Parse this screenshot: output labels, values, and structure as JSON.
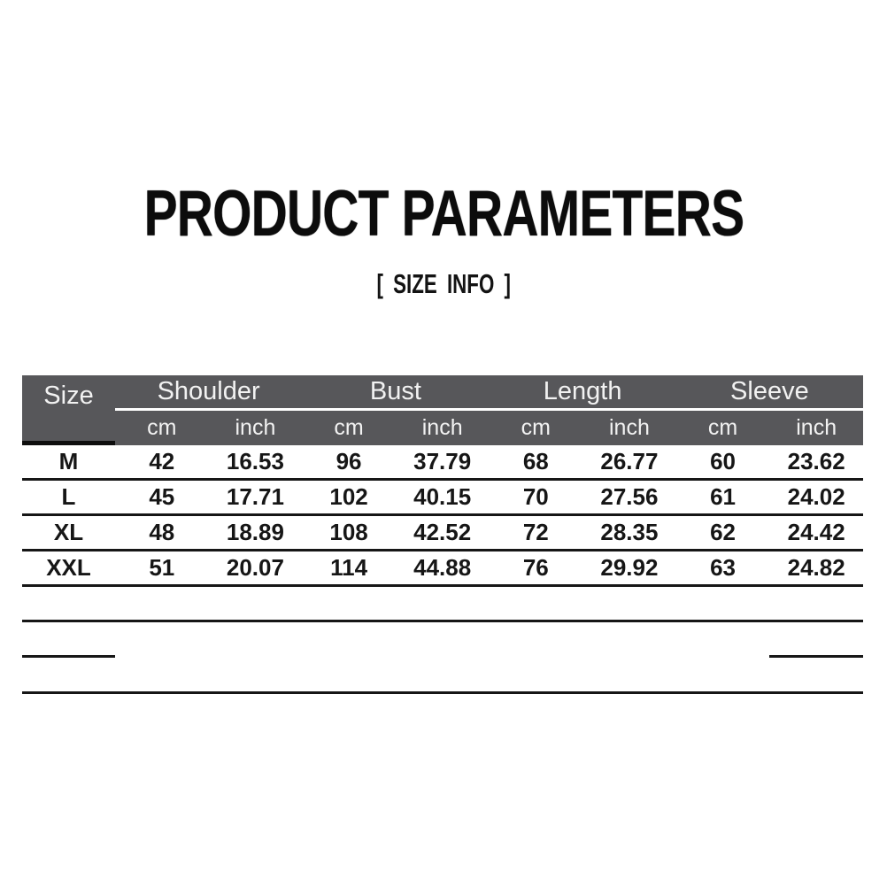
{
  "title": "PRODUCT PARAMETERS",
  "subtitle": "[ SIZE INFO ]",
  "colors": {
    "header_bg": "#57575a",
    "header_text": "#f2f2f2",
    "line": "#161616",
    "title_text": "#0c0c0c",
    "background": "#ffffff"
  },
  "size_table": {
    "corner_label": "Size",
    "groups": [
      "Shoulder",
      "Bust",
      "Length",
      "Sleeve"
    ],
    "units": [
      "cm",
      "inch",
      "cm",
      "inch",
      "cm",
      "inch",
      "cm",
      "inch"
    ],
    "rows": [
      {
        "cells": [
          "M",
          "42",
          "16.53",
          "96",
          "37.79",
          "68",
          "26.77",
          "60",
          "23.62"
        ]
      },
      {
        "cells": [
          "L",
          "45",
          "17.71",
          "102",
          "40.15",
          "70",
          "27.56",
          "61",
          "24.02"
        ]
      },
      {
        "cells": [
          "XL",
          "48",
          "18.89",
          "108",
          "42.52",
          "72",
          "28.35",
          "62",
          "24.42"
        ]
      },
      {
        "cells": [
          "XXL",
          "51",
          "20.07",
          "114",
          "44.88",
          "76",
          "29.92",
          "63",
          "24.82"
        ]
      }
    ]
  },
  "chart_data": {
    "type": "table",
    "title": "PRODUCT PARAMETERS",
    "subtitle": "[ SIZE INFO ]",
    "columns": [
      "Size",
      "Shoulder cm",
      "Shoulder inch",
      "Bust cm",
      "Bust inch",
      "Length cm",
      "Length inch",
      "Sleeve cm",
      "Sleeve inch"
    ],
    "rows": [
      [
        "M",
        42,
        16.53,
        96,
        37.79,
        68,
        26.77,
        60,
        23.62
      ],
      [
        "L",
        45,
        17.71,
        102,
        40.15,
        70,
        27.56,
        61,
        24.02
      ],
      [
        "XL",
        48,
        18.89,
        108,
        42.52,
        72,
        28.35,
        62,
        24.42
      ],
      [
        "XXL",
        51,
        20.07,
        114,
        44.88,
        76,
        29.92,
        63,
        24.82
      ]
    ]
  }
}
